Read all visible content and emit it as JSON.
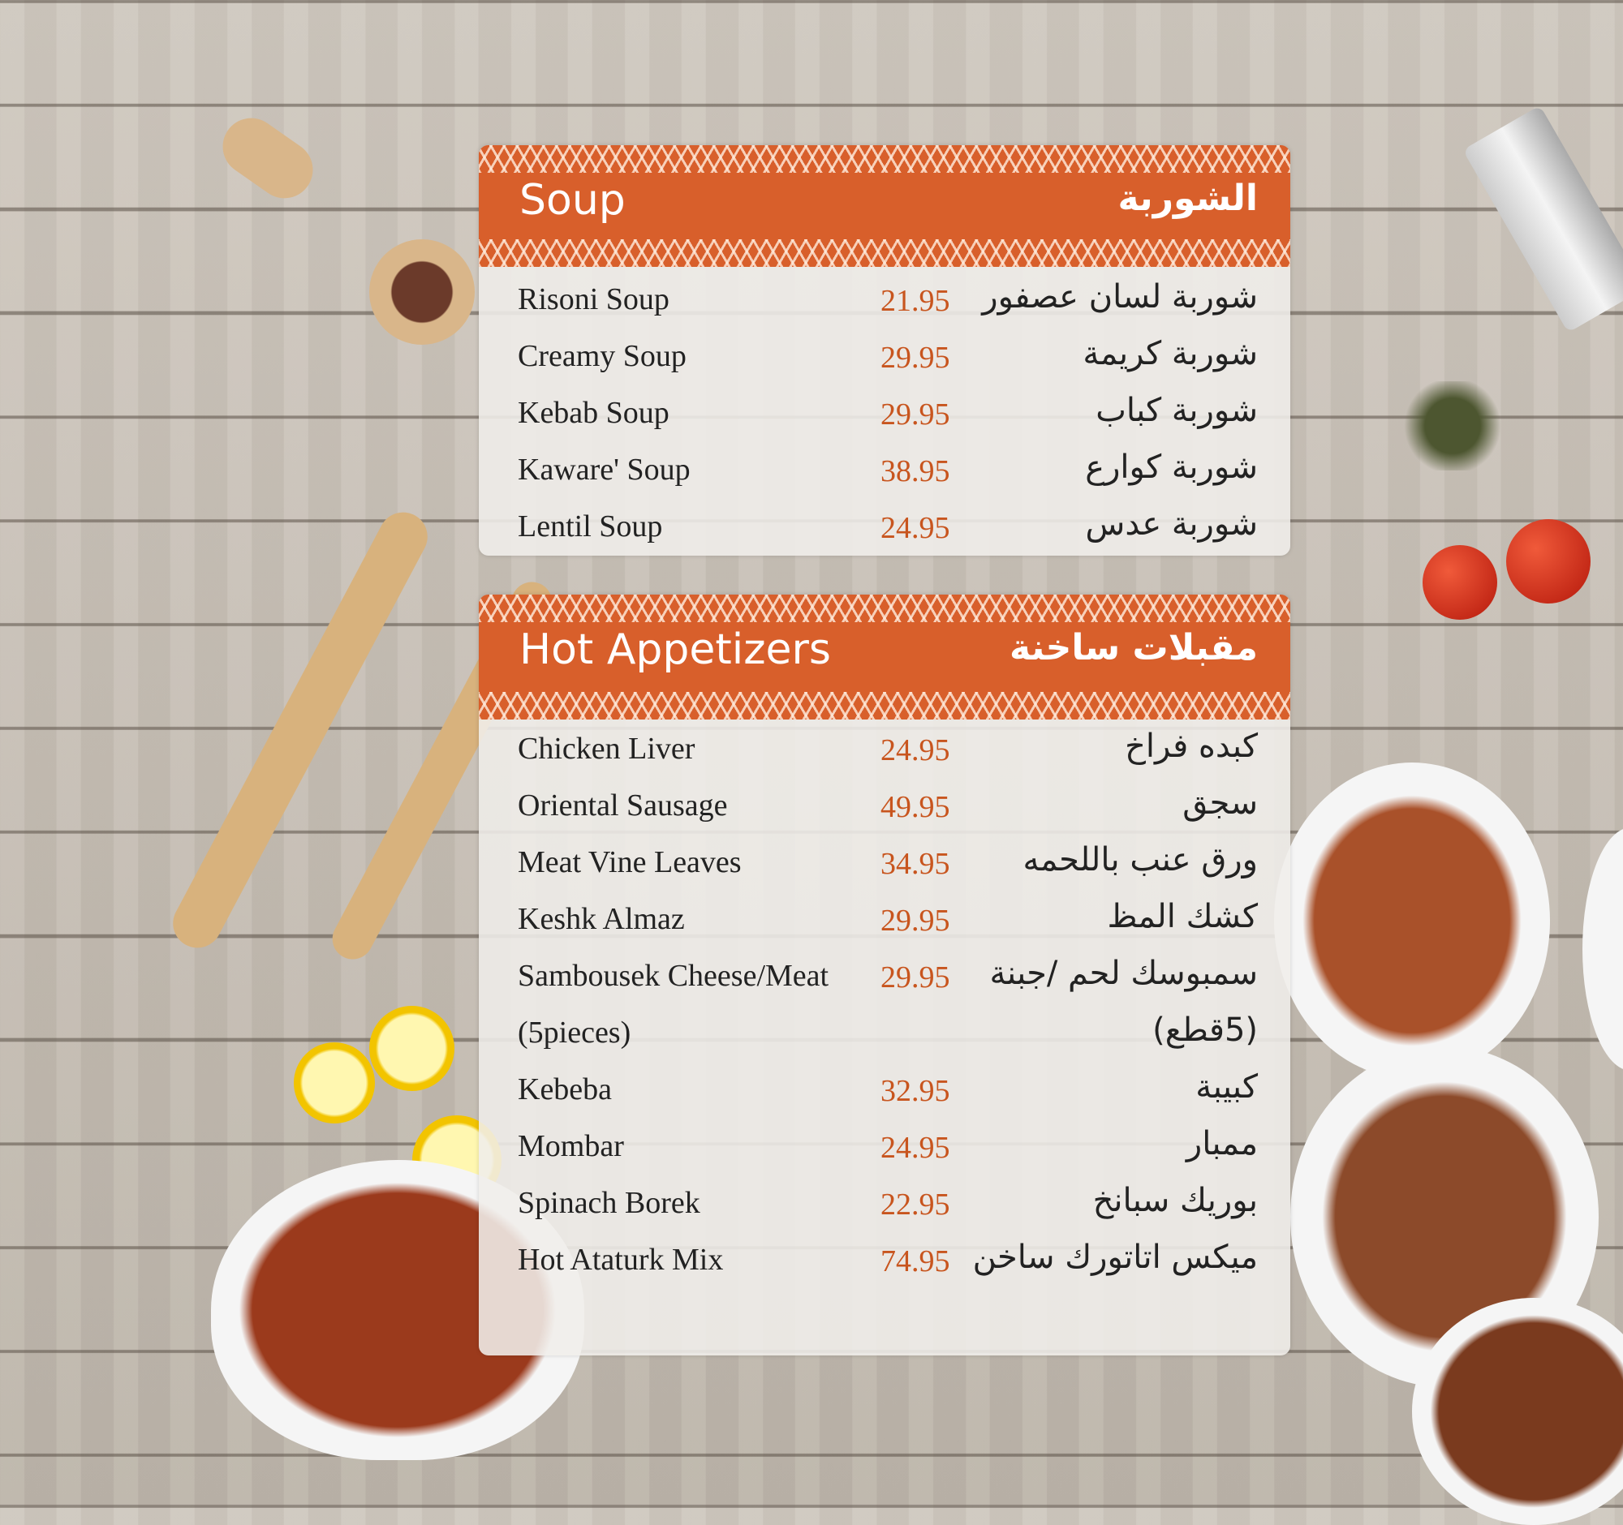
{
  "sections": [
    {
      "title_en": "Soup",
      "title_ar": "الشوربة",
      "items": [
        {
          "en": "Risoni Soup",
          "price": "21.95",
          "ar": "شوربة لسان عصفور"
        },
        {
          "en": "Creamy Soup",
          "price": "29.95",
          "ar": "شوربة كريمة"
        },
        {
          "en": "Kebab Soup",
          "price": "29.95",
          "ar": "شوربة كباب"
        },
        {
          "en": "Kaware' Soup",
          "price": "38.95",
          "ar": "شوربة كوارع"
        },
        {
          "en": "Lentil Soup",
          "price": "24.95",
          "ar": "شوربة عدس"
        }
      ]
    },
    {
      "title_en": "Hot Appetizers",
      "title_ar": "مقبلات ساخنة",
      "items": [
        {
          "en": "Chicken Liver",
          "price": "24.95",
          "ar": "كبده فراخ"
        },
        {
          "en": "Oriental Sausage",
          "price": "49.95",
          "ar": "سجق"
        },
        {
          "en": "Meat Vine Leaves",
          "price": "34.95",
          "ar": "ورق عنب باللحمه"
        },
        {
          "en": "Keshk Almaz",
          "price": "29.95",
          "ar": "كشك المظ"
        },
        {
          "en": "Sambousek Cheese/Meat",
          "price": "29.95",
          "ar": "سمبوسك لحم /جبنة"
        },
        {
          "en": "(5pieces)",
          "price": "",
          "ar": "(5قطع)"
        },
        {
          "en": "Kebeba",
          "price": "32.95",
          "ar": "كبيبة"
        },
        {
          "en": "Mombar",
          "price": "24.95",
          "ar": "ممبار"
        },
        {
          "en": "Spinach Borek",
          "price": "22.95",
          "ar": "بوريك سبانخ"
        },
        {
          "en": "Hot Ataturk Mix",
          "price": "74.95",
          "ar": "ميكس اتاتورك ساخن"
        }
      ]
    }
  ],
  "colors": {
    "accent": "#d85f2b",
    "price": "#c8551e"
  }
}
